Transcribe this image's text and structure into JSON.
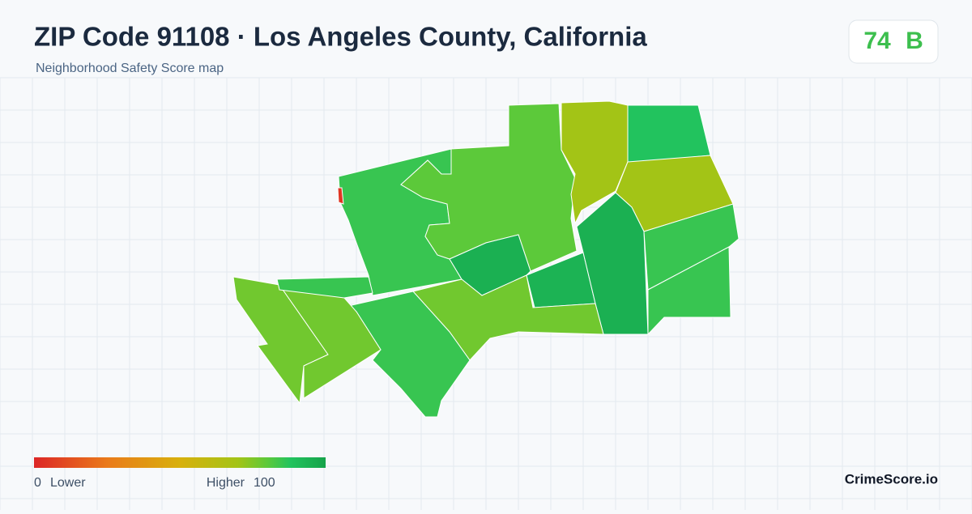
{
  "header": {
    "title": "ZIP Code 91108 · Los Angeles County, California",
    "subtitle": "Neighborhood Safety Score map"
  },
  "score": {
    "value": 74,
    "grade": "B",
    "color": "#3dbf4e"
  },
  "legend": {
    "min": 0,
    "min_label": "Lower",
    "max_label": "Higher",
    "max": 100,
    "stops": [
      {
        "value": 0,
        "color": "#dc2626"
      },
      {
        "value": 25,
        "color": "#ea7a1a"
      },
      {
        "value": 50,
        "color": "#d8b00c"
      },
      {
        "value": 70,
        "color": "#a3c416"
      },
      {
        "value": 80,
        "color": "#5cc93a"
      },
      {
        "value": 88,
        "color": "#22c35e"
      },
      {
        "value": 100,
        "color": "#16a34a"
      }
    ]
  },
  "regions": [
    {
      "score": 85
    },
    {
      "score": 80
    },
    {
      "score": 70
    },
    {
      "score": 88
    },
    {
      "score": 70
    },
    {
      "score": 95
    },
    {
      "score": 94
    },
    {
      "score": 95
    },
    {
      "score": 85
    },
    {
      "score": 85
    },
    {
      "score": 77
    },
    {
      "score": 85
    },
    {
      "score": 77
    },
    {
      "score": 77
    },
    {
      "score": 85
    },
    {
      "score": 5
    }
  ],
  "brand": "CrimeScore.io"
}
